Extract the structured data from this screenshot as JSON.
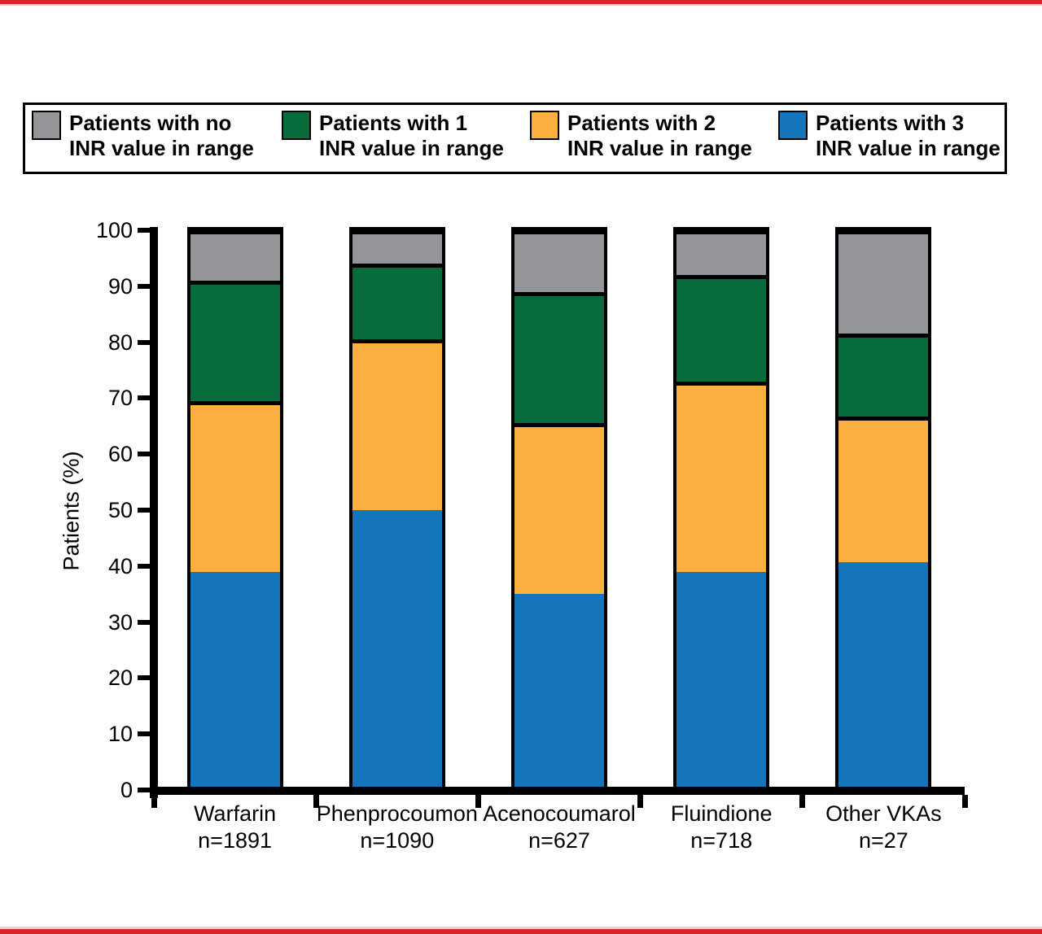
{
  "page": {
    "top_rule_color": "#d8232c",
    "bottom_rule_color": "#d8232c",
    "background": "#ffffff"
  },
  "legend": {
    "items": [
      {
        "key": "no-inr",
        "line1": "Patients with no",
        "line2": "INR value in range",
        "color": "#939598"
      },
      {
        "key": "1-inr",
        "line1": "Patients with 1",
        "line2": "INR value in range",
        "color": "#076b3b"
      },
      {
        "key": "2-inr",
        "line1": "Patients with 2",
        "line2": "INR value in range",
        "color": "#fbb040"
      },
      {
        "key": "3-inr",
        "line1": "Patients with 3",
        "line2": "INR value in range",
        "color": "#1475bd"
      }
    ]
  },
  "chart_data": {
    "type": "bar",
    "stacked": true,
    "title": "",
    "ylabel": "Patients (%)",
    "xlabel": "",
    "ylim": [
      0,
      100
    ],
    "yticks": [
      0,
      10,
      20,
      30,
      40,
      50,
      60,
      70,
      80,
      90,
      100
    ],
    "grid": false,
    "legend_position": "top",
    "categories": [
      {
        "label": "Warfarin",
        "n_label": "n=1891"
      },
      {
        "label": "Phenprocoumon",
        "n_label": "n=1090"
      },
      {
        "label": "Acenocoumarol",
        "n_label": "n=627"
      },
      {
        "label": "Fluindione",
        "n_label": "n=718"
      },
      {
        "label": "Other VKAs",
        "n_label": "n=27"
      }
    ],
    "series": [
      {
        "name": "Patients with 3 INR value in range",
        "color": "#1475bd",
        "values": [
          39,
          50,
          35,
          39,
          40.7
        ]
      },
      {
        "name": "Patients with 2 INR value in range",
        "color": "#fbb040",
        "values": [
          30.5,
          30.5,
          30.5,
          34,
          26
        ]
      },
      {
        "name": "Patients with 1 INR value in range",
        "color": "#076b3b",
        "values": [
          21.5,
          13.5,
          23.5,
          19,
          14.8
        ]
      },
      {
        "name": "Patients with no INR value in range",
        "color": "#939598",
        "values": [
          9,
          6,
          11,
          8,
          18.5
        ]
      }
    ]
  }
}
